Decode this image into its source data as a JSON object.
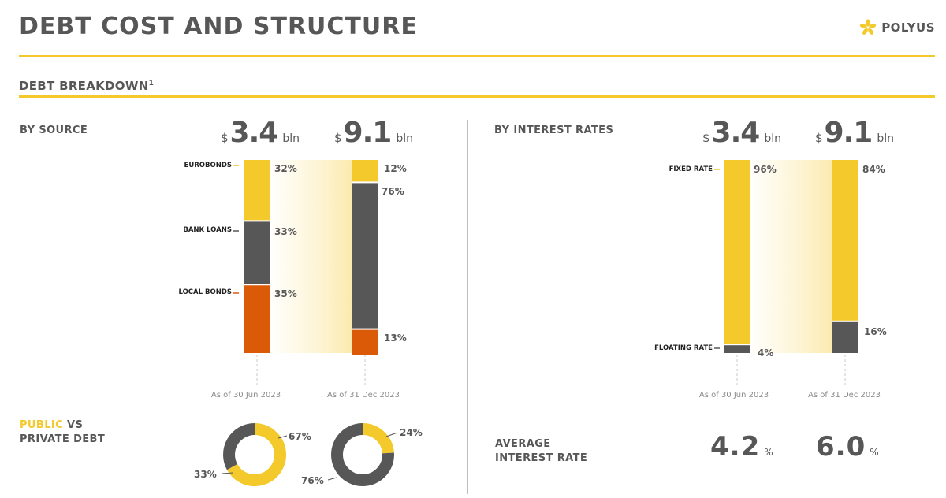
{
  "header": {
    "title": "DEBT COST AND STRUCTURE",
    "logo_text": "POLYUS"
  },
  "section": {
    "title": "DEBT BREAKDOWN",
    "footnote": "1"
  },
  "by_source": {
    "label": "BY SOURCE"
  },
  "by_rates": {
    "label": "BY INTEREST RATES"
  },
  "totals": {
    "currency": "$",
    "unit": "bln",
    "jun": "3.4",
    "dec": "9.1"
  },
  "dates": {
    "jun": "As of 30 Jun 2023",
    "dec": "As of 31 Dec 2023"
  },
  "public_private": {
    "label_public": "PUBLIC",
    "label_vs": " VS",
    "label_private": "PRIVATE DEBT"
  },
  "avg_rate": {
    "label_line1": "AVERAGE",
    "label_line2": "INTEREST RATE",
    "jun": "4.2",
    "dec": "6.0",
    "unit": "%"
  },
  "colors": {
    "yellow": "#f3c92b",
    "grey": "#575757",
    "orange": "#db5a08"
  },
  "chart_data": [
    {
      "type": "bar",
      "stacked": true,
      "title": "BY SOURCE",
      "categories": [
        "As of 30 Jun 2023",
        "As of 31 Dec 2023"
      ],
      "totals": [
        "$3.4 bln",
        "$9.1 bln"
      ],
      "series": [
        {
          "name": "EUROBONDS",
          "values": [
            32,
            12
          ],
          "labels": [
            "32%",
            "12%"
          ],
          "color": "#f3c92b"
        },
        {
          "name": "BANK LOANS",
          "values": [
            33,
            76
          ],
          "labels": [
            "33%",
            "76%"
          ],
          "color": "#575757"
        },
        {
          "name": "LOCAL BONDS",
          "values": [
            35,
            13
          ],
          "labels": [
            "35%",
            "13%"
          ],
          "color": "#db5a08"
        }
      ]
    },
    {
      "type": "bar",
      "stacked": true,
      "title": "BY INTEREST RATES",
      "categories": [
        "As of 30 Jun 2023",
        "As of 31 Dec 2023"
      ],
      "totals": [
        "$3.4 bln",
        "$9.1 bln"
      ],
      "series": [
        {
          "name": "FIXED RATE",
          "values": [
            96,
            84
          ],
          "labels": [
            "96%",
            "84%"
          ],
          "color": "#f3c92b"
        },
        {
          "name": "FLOATING RATE",
          "values": [
            4,
            16
          ],
          "labels": [
            "4%",
            "16%"
          ],
          "color": "#575757"
        }
      ]
    },
    {
      "type": "pie",
      "donut": true,
      "title": "PUBLIC VS PRIVATE DEBT",
      "period": "As of 30 Jun 2023",
      "slices": [
        {
          "name": "PUBLIC",
          "value": 67,
          "label": "67%",
          "color": "#f3c92b"
        },
        {
          "name": "PRIVATE",
          "value": 33,
          "label": "33%",
          "color": "#575757"
        }
      ]
    },
    {
      "type": "pie",
      "donut": true,
      "title": "PUBLIC VS PRIVATE DEBT",
      "period": "As of 31 Dec 2023",
      "slices": [
        {
          "name": "PUBLIC",
          "value": 24,
          "label": "24%",
          "color": "#f3c92b"
        },
        {
          "name": "PRIVATE",
          "value": 76,
          "label": "76%",
          "color": "#575757"
        }
      ]
    }
  ]
}
